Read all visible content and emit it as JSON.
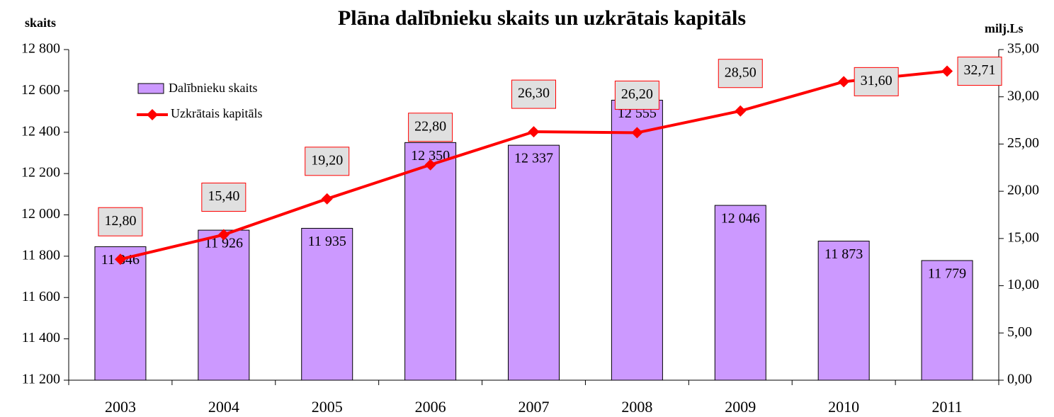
{
  "chart_data": {
    "type": "combo",
    "title": "Plāna dalībnieku skaits un uzkrātais kapitāls",
    "ylabel": "skaits",
    "y2label": "milj.Ls",
    "categories": [
      "2003",
      "2004",
      "2005",
      "2006",
      "2007",
      "2008",
      "2009",
      "2010",
      "2011"
    ],
    "series": [
      {
        "name": "Dalībnieku skaits",
        "type": "bar",
        "color": "#cc99ff",
        "values": [
          11846,
          11926,
          11935,
          12350,
          12337,
          12555,
          12046,
          11873,
          11779
        ],
        "value_labels": [
          "11 846",
          "11 926",
          "11 935",
          "12 350",
          "12 337",
          "12 555",
          "12 046",
          "11 873",
          "11 779"
        ]
      },
      {
        "name": "Uzkrātais kapitāls",
        "type": "line",
        "color": "#ff0000",
        "axis": "y2",
        "values": [
          12.8,
          15.4,
          19.2,
          22.8,
          26.3,
          26.2,
          28.5,
          31.6,
          32.71
        ],
        "value_labels": [
          "12,80",
          "15,40",
          "19,20",
          "22,80",
          "26,30",
          "26,20",
          "28,50",
          "31,60",
          "32,71"
        ]
      }
    ],
    "ylim": [
      11200,
      12800
    ],
    "yticks": [
      {
        "value": 11200,
        "label": "11 200"
      },
      {
        "value": 11400,
        "label": "11 400"
      },
      {
        "value": 11600,
        "label": "11 600"
      },
      {
        "value": 11800,
        "label": "11 800"
      },
      {
        "value": 12000,
        "label": "12 000"
      },
      {
        "value": 12200,
        "label": "12 200"
      },
      {
        "value": 12400,
        "label": "12 400"
      },
      {
        "value": 12600,
        "label": "12 600"
      },
      {
        "value": 12800,
        "label": "12 800"
      }
    ],
    "y2lim": [
      0,
      35
    ],
    "y2ticks": [
      {
        "value": 0,
        "label": "0,00"
      },
      {
        "value": 5,
        "label": "5,00"
      },
      {
        "value": 10,
        "label": "10,00"
      },
      {
        "value": 15,
        "label": "15,00"
      },
      {
        "value": 20,
        "label": "20,00"
      },
      {
        "value": 25,
        "label": "25,00"
      },
      {
        "value": 30,
        "label": "30,00"
      },
      {
        "value": 35,
        "label": "35,00"
      }
    ],
    "legend": "upper left",
    "grid": false
  }
}
